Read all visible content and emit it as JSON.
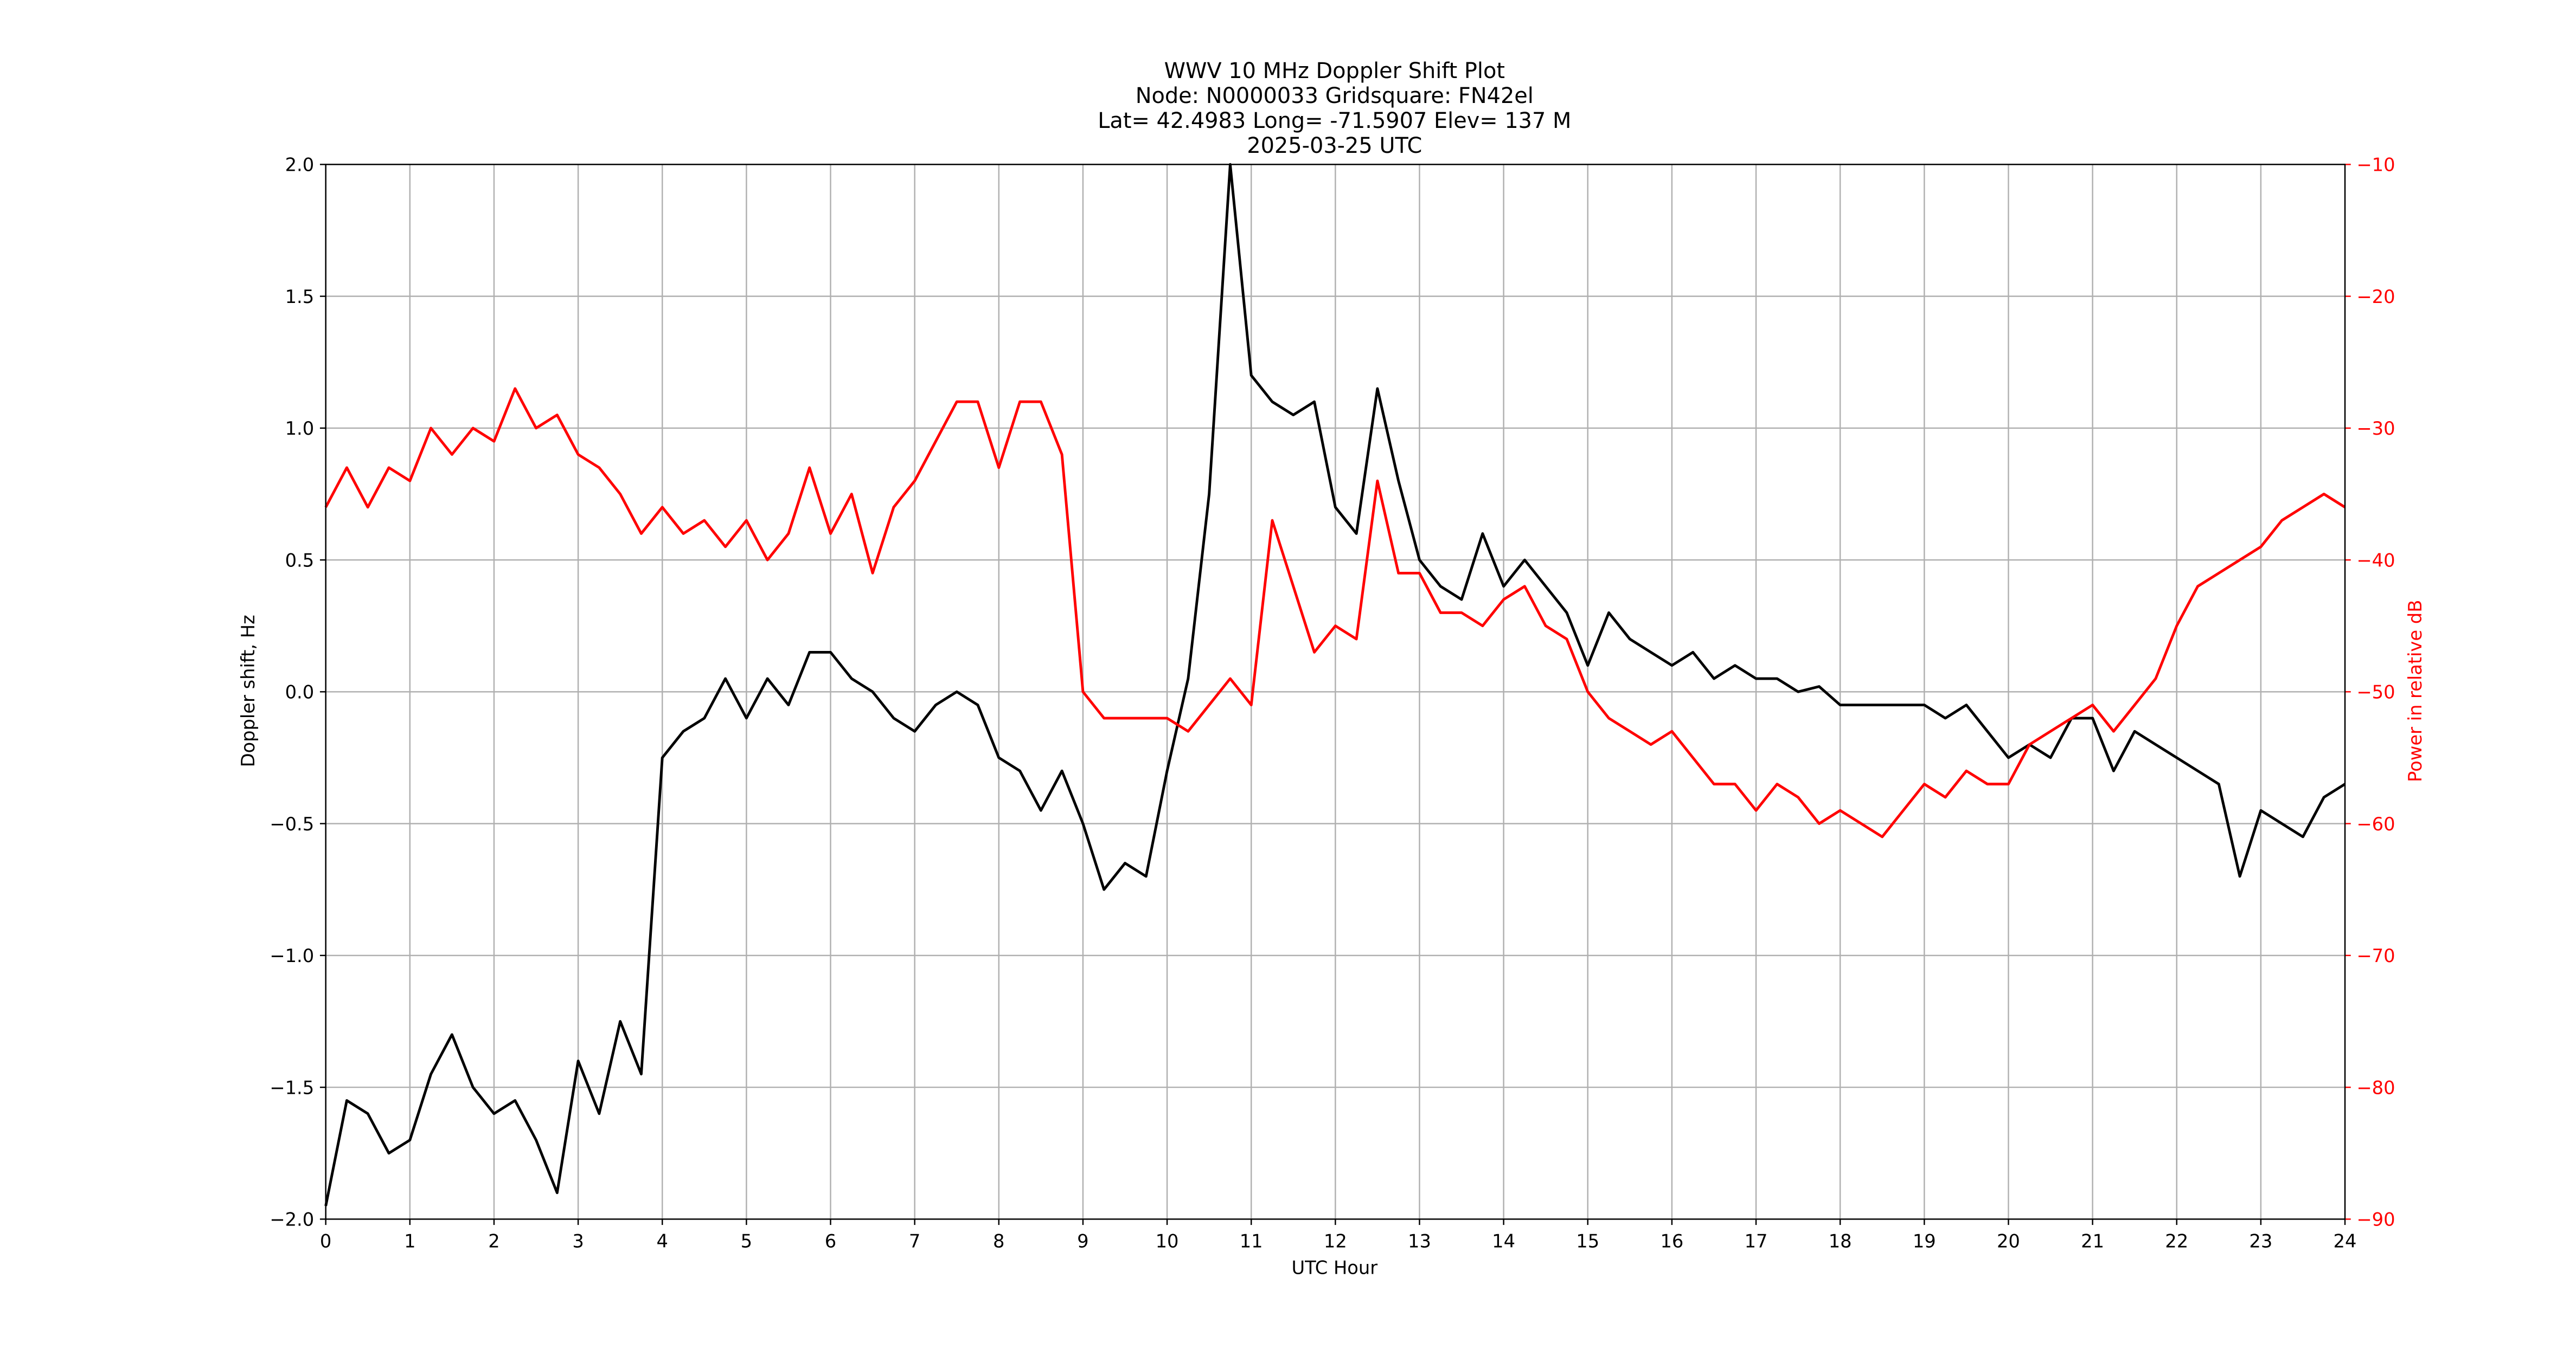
{
  "chart_data": {
    "type": "line",
    "title": [
      "WWV 10 MHz Doppler Shift Plot",
      "Node:  N0000033     Gridsquare:  FN42el",
      "Lat= 42.4983    Long= -71.5907    Elev= 137 M",
      "2025-03-25  UTC"
    ],
    "xlabel": "UTC Hour",
    "ylabel": "Doppler shift, Hz",
    "y2label": "Power in relative dB",
    "x": [
      0,
      0.25,
      0.5,
      0.75,
      1,
      1.25,
      1.5,
      1.75,
      2,
      2.25,
      2.5,
      2.75,
      3,
      3.25,
      3.5,
      3.75,
      4,
      4.25,
      4.5,
      4.75,
      5,
      5.25,
      5.5,
      5.75,
      6,
      6.25,
      6.5,
      6.75,
      7,
      7.25,
      7.5,
      7.75,
      8,
      8.25,
      8.5,
      8.75,
      9,
      9.25,
      9.5,
      9.75,
      10,
      10.25,
      10.5,
      10.75,
      11,
      11.25,
      11.5,
      11.75,
      12,
      12.25,
      12.5,
      12.75,
      13,
      13.25,
      13.5,
      13.75,
      14,
      14.25,
      14.5,
      14.75,
      15,
      15.25,
      15.5,
      15.75,
      16,
      16.25,
      16.5,
      16.75,
      17,
      17.25,
      17.5,
      17.75,
      18,
      18.25,
      18.5,
      18.75,
      19,
      19.25,
      19.5,
      19.75,
      20,
      20.25,
      20.5,
      20.75,
      21,
      21.25,
      21.5,
      21.75,
      22,
      22.25,
      22.5,
      22.75,
      23,
      23.25,
      23.5,
      23.75,
      24
    ],
    "series": [
      {
        "name": "Doppler shift, Hz",
        "color": "#000000",
        "axis": "y",
        "values": [
          -1.95,
          -1.55,
          -1.6,
          -1.75,
          -1.7,
          -1.45,
          -1.3,
          -1.5,
          -1.6,
          -1.55,
          -1.7,
          -1.9,
          -1.4,
          -1.6,
          -1.25,
          -1.45,
          -0.25,
          -0.15,
          -0.1,
          0.05,
          -0.1,
          0.05,
          -0.05,
          0.15,
          0.15,
          0.05,
          0.0,
          -0.1,
          -0.15,
          -0.05,
          0.0,
          -0.05,
          -0.25,
          -0.3,
          -0.45,
          -0.3,
          -0.5,
          -0.75,
          -0.65,
          -0.7,
          -0.3,
          0.05,
          0.75,
          2.0,
          1.2,
          1.1,
          1.05,
          1.1,
          0.7,
          0.6,
          1.15,
          0.8,
          0.5,
          0.4,
          0.35,
          0.6,
          0.4,
          0.5,
          0.4,
          0.3,
          0.1,
          0.3,
          0.2,
          0.15,
          0.1,
          0.15,
          0.05,
          0.1,
          0.05,
          0.05,
          0.0,
          0.02,
          -0.05,
          -0.05,
          -0.05,
          -0.05,
          -0.05,
          -0.1,
          -0.05,
          -0.15,
          -0.25,
          -0.2,
          -0.25,
          -0.1,
          -0.1,
          -0.3,
          -0.15,
          -0.2,
          -0.25,
          -0.3,
          -0.35,
          -0.7,
          -0.45,
          -0.5,
          -0.55,
          -0.4,
          -0.35
        ]
      },
      {
        "name": "Power in relative dB",
        "color": "#ff0000",
        "axis": "y2",
        "values": [
          -36,
          -33,
          -36,
          -33,
          -34,
          -30,
          -32,
          -30,
          -31,
          -27,
          -30,
          -29,
          -32,
          -33,
          -35,
          -38,
          -36,
          -38,
          -37,
          -39,
          -37,
          -40,
          -38,
          -33,
          -38,
          -35,
          -41,
          -36,
          -34,
          -31,
          -28,
          -28,
          -33,
          -28,
          -28,
          -32,
          -50,
          -52,
          -52,
          -52,
          -52,
          -53,
          -51,
          -49,
          -51,
          -37,
          -42,
          -47,
          -45,
          -46,
          -34,
          -41,
          -41,
          -44,
          -44,
          -45,
          -43,
          -42,
          -45,
          -46,
          -50,
          -52,
          -53,
          -54,
          -53,
          -55,
          -57,
          -57,
          -59,
          -57,
          -58,
          -60,
          -59,
          -60,
          -61,
          -59,
          -57,
          -58,
          -56,
          -57,
          -57,
          -54,
          -53,
          -52,
          -51,
          -53,
          -51,
          -49,
          -45,
          -42,
          -41,
          -40,
          -39,
          -37,
          -36,
          -35,
          -36
        ]
      }
    ],
    "xlim": [
      0,
      24
    ],
    "xticks": [
      0,
      1,
      2,
      3,
      4,
      5,
      6,
      7,
      8,
      9,
      10,
      11,
      12,
      13,
      14,
      15,
      16,
      17,
      18,
      19,
      20,
      21,
      22,
      23,
      24
    ],
    "ylim": [
      -2,
      2
    ],
    "yticks": [
      {
        "value": -2,
        "label": "−2.0"
      },
      {
        "value": -1.5,
        "label": "−1.5"
      },
      {
        "value": -1,
        "label": "−1.0"
      },
      {
        "value": -0.5,
        "label": "−0.5"
      },
      {
        "value": 0,
        "label": "0.0"
      },
      {
        "value": 0.5,
        "label": "0.5"
      },
      {
        "value": 1,
        "label": "1.0"
      },
      {
        "value": 1.5,
        "label": "1.5"
      },
      {
        "value": 2,
        "label": "2.0"
      }
    ],
    "y2lim": [
      -90,
      -10
    ],
    "y2ticks": [
      {
        "value": -90,
        "label": "−90"
      },
      {
        "value": -80,
        "label": "−80"
      },
      {
        "value": -70,
        "label": "−70"
      },
      {
        "value": -60,
        "label": "−60"
      },
      {
        "value": -50,
        "label": "−50"
      },
      {
        "value": -40,
        "label": "−40"
      },
      {
        "value": -30,
        "label": "−30"
      },
      {
        "value": -20,
        "label": "−20"
      },
      {
        "value": -10,
        "label": "−10"
      }
    ],
    "y2color": "#ff0000",
    "grid": true
  }
}
